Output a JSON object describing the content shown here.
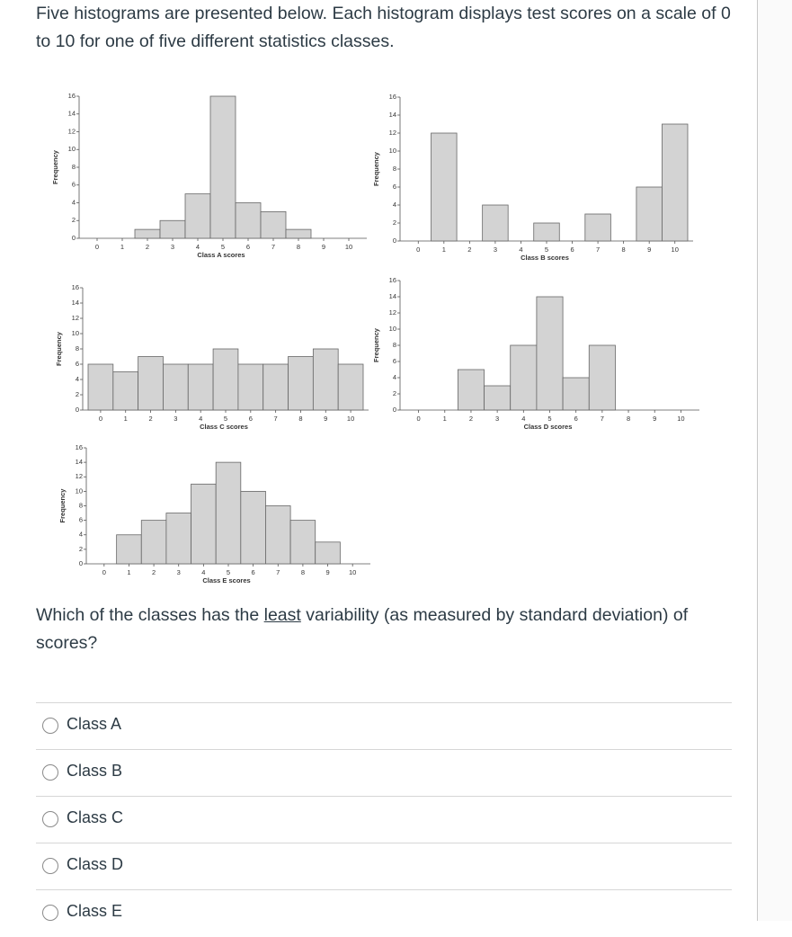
{
  "intro": "Five histograms are presented below. Each histogram displays test scores on a scale of 0 to 10 for one of five different statistics classes.",
  "question": [
    "Which of the classes has the ",
    "least",
    " variability (as measured by standard deviation) of scores?"
  ],
  "options": [
    "Class A",
    "Class B",
    "Class C",
    "Class D",
    "Class E"
  ],
  "chart_data": [
    {
      "type": "histogram",
      "xlabel": "Class A scores",
      "ylabel": "Frequency",
      "color": "#d3d3d3",
      "bins": [
        -0.5,
        0.5,
        1.5,
        2.5,
        3.5,
        4.5,
        5.5,
        6.5,
        7.5,
        8.5,
        9.5,
        10.5
      ],
      "values": [
        0,
        0,
        1,
        2,
        5,
        16,
        4,
        3,
        1,
        0,
        0
      ],
      "xlim": [
        -0.5,
        10.5
      ],
      "xticks": [
        0,
        1,
        2,
        3,
        4,
        5,
        6,
        7,
        8,
        9,
        10
      ],
      "ylim": [
        0,
        16
      ],
      "yticks": [
        0,
        2,
        4,
        6,
        8,
        10,
        12,
        14,
        16
      ]
    },
    {
      "type": "histogram",
      "xlabel": "Class B scores",
      "ylabel": "Frequency",
      "color": "#d3d3d3",
      "bins": [
        -0.5,
        0.5,
        1.5,
        2.5,
        3.5,
        4.5,
        5.5,
        6.5,
        7.5,
        8.5,
        9.5,
        10.5
      ],
      "values": [
        0,
        12,
        0,
        4,
        0,
        2,
        0,
        3,
        0,
        6,
        13
      ],
      "xlim": [
        -0.5,
        10.5
      ],
      "xticks": [
        0,
        1,
        2,
        3,
        4,
        5,
        6,
        7,
        8,
        9,
        10
      ],
      "ylim": [
        0,
        16
      ],
      "yticks": [
        0,
        2,
        4,
        6,
        8,
        10,
        12,
        14,
        16
      ]
    },
    {
      "type": "histogram",
      "xlabel": "Class C scores",
      "ylabel": "Frequency",
      "color": "#d3d3d3",
      "bins": [
        -0.5,
        0.5,
        1.5,
        2.5,
        3.5,
        4.5,
        5.5,
        6.5,
        7.5,
        8.5,
        9.5,
        10.5
      ],
      "values": [
        6,
        5,
        7,
        6,
        6,
        8,
        6,
        6,
        7,
        8,
        6
      ],
      "xlim": [
        -0.5,
        10.5
      ],
      "xticks": [
        0,
        1,
        2,
        3,
        4,
        5,
        6,
        7,
        8,
        9,
        10
      ],
      "ylim": [
        0,
        16
      ],
      "yticks": [
        0,
        2,
        4,
        6,
        8,
        10,
        12,
        14,
        16
      ]
    },
    {
      "type": "histogram",
      "xlabel": "Class D scores",
      "ylabel": "Frequency",
      "color": "#d3d3d3",
      "bins": [
        -0.5,
        0.5,
        1.5,
        2.5,
        3.5,
        4.5,
        5.5,
        6.5,
        7.5,
        8.5,
        9.5,
        10.5
      ],
      "values": [
        0,
        0,
        5,
        3,
        8,
        14,
        4,
        8,
        0,
        0,
        0
      ],
      "xlim": [
        -0.5,
        10.5
      ],
      "xticks": [
        0,
        1,
        2,
        3,
        4,
        5,
        6,
        7,
        8,
        9,
        10
      ],
      "ylim": [
        0,
        16
      ],
      "yticks": [
        0,
        2,
        4,
        6,
        8,
        10,
        12,
        14,
        16
      ]
    },
    {
      "type": "histogram",
      "xlabel": "Class E scores",
      "ylabel": "Frequency",
      "color": "#d3d3d3",
      "bins": [
        -0.5,
        0.5,
        1.5,
        2.5,
        3.5,
        4.5,
        5.5,
        6.5,
        7.5,
        8.5,
        9.5,
        10.5
      ],
      "values": [
        0,
        4,
        6,
        7,
        11,
        14,
        10,
        8,
        6,
        3,
        0
      ],
      "xlim": [
        -0.5,
        10.5
      ],
      "xticks": [
        0,
        1,
        2,
        3,
        4,
        5,
        6,
        7,
        8,
        9,
        10
      ],
      "ylim": [
        0,
        16
      ],
      "yticks": [
        0,
        2,
        4,
        6,
        8,
        10,
        12,
        14,
        16
      ]
    }
  ]
}
